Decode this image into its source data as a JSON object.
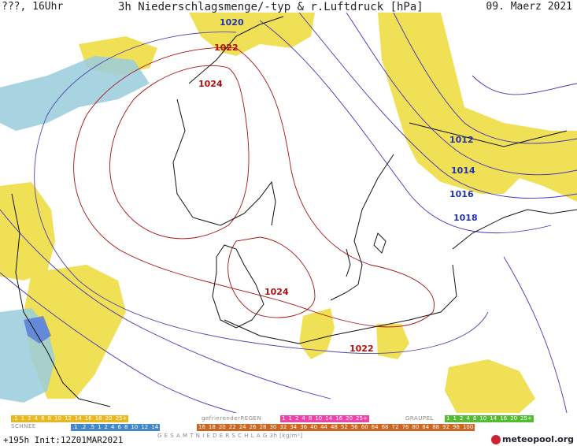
{
  "header": {
    "left": "???, 16Uhr",
    "title": "3h Niederschlagsmenge/-typ & r.Luftdruck [hPa]",
    "date": "09. Maerz 2021"
  },
  "isobar_labels": [
    {
      "text": "1020",
      "color": "#2233aa"
    },
    {
      "text": "1022",
      "color": "#aa1111"
    },
    {
      "text": "1024",
      "color": "#aa1111"
    },
    {
      "text": "1012",
      "color": "#2233aa"
    },
    {
      "text": "1014",
      "color": "#2233aa"
    },
    {
      "text": "1016",
      "color": "#2233aa"
    },
    {
      "text": "1018",
      "color": "#2233aa"
    },
    {
      "text": "1024",
      "color": "#aa1111"
    },
    {
      "text": "1022",
      "color": "#aa1111"
    }
  ],
  "legend": {
    "rain_title": "",
    "rain_steps": [
      ".1",
      "1",
      "2",
      "4",
      "6",
      "8",
      "10",
      "12",
      "14",
      "16",
      "18",
      "20",
      "25+"
    ],
    "freezing_title": "gefrierenderREGEN",
    "freezing_steps": [
      "1",
      "1",
      "2",
      "4",
      "8",
      "10",
      "14",
      "16",
      "20",
      "25+"
    ],
    "graupel_title": "GRAUPEL",
    "graupel_steps": [
      "1",
      "1",
      "2",
      "4",
      "8",
      "10",
      "14",
      "16",
      "20",
      "25+"
    ],
    "snow_title": "SCHNEE",
    "snow_steps": [
      ".1",
      ".2",
      ".5",
      "1",
      "2",
      "4",
      "6",
      "8",
      "10",
      "12",
      "14"
    ],
    "total_steps": [
      "16",
      "18",
      "20",
      "22",
      "24",
      "26",
      "28",
      "30",
      "32",
      "34",
      "36",
      "40",
      "44",
      "48",
      "52",
      "56",
      "60",
      "64",
      "68",
      "72",
      "76",
      "80",
      "84",
      "88",
      "92",
      "96",
      "100"
    ],
    "total_title": "G E S A M T N I E D E R S C H L A G   3h  [kg/m²]"
  },
  "footer": {
    "run": "+195h  Init:12Z01MAR2021",
    "brand": "meteopool.org"
  },
  "colors": {
    "rain": "#eedd33",
    "snow": "#88ccdd",
    "isobar_high": "#aa1111",
    "isobar_low": "#2233aa"
  }
}
